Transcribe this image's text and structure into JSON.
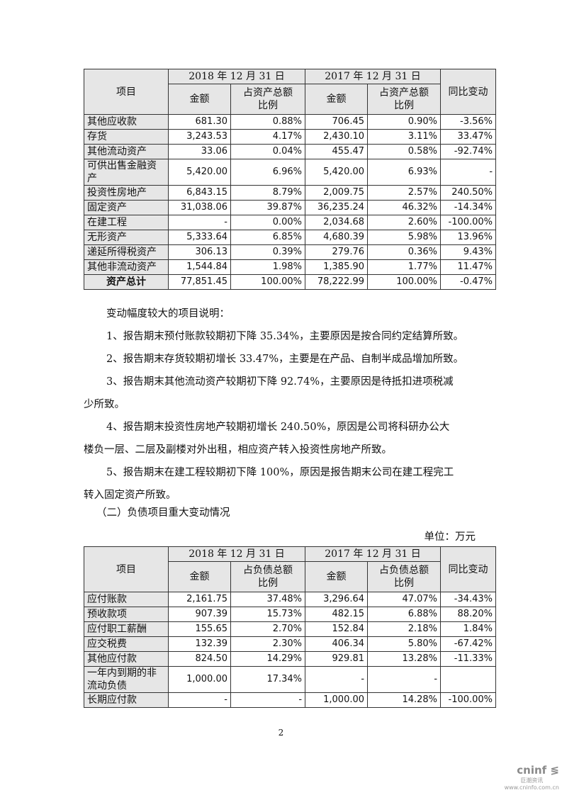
{
  "asset_table": {
    "header": {
      "item": "项目",
      "date1": "2018 年 12 月 31 日",
      "date2": "2017 年 12 月 31 日",
      "amount": "金额",
      "ratio": "占资产总额比例",
      "change": "同比变动"
    },
    "rows": [
      [
        "其他应收款",
        "681.30",
        "0.88%",
        "706.45",
        "0.90%",
        "-3.56%"
      ],
      [
        "存货",
        "3,243.53",
        "4.17%",
        "2,430.10",
        "3.11%",
        "33.47%"
      ],
      [
        "其他流动资产",
        "33.06",
        "0.04%",
        "455.47",
        "0.58%",
        "-92.74%"
      ],
      [
        "可供出售金融资产",
        "5,420.00",
        "6.96%",
        "5,420.00",
        "6.93%",
        "-"
      ],
      [
        "投资性房地产",
        "6,843.15",
        "8.79%",
        "2,009.75",
        "2.57%",
        "240.50%"
      ],
      [
        "固定资产",
        "31,038.06",
        "39.87%",
        "36,235.24",
        "46.32%",
        "-14.34%"
      ],
      [
        "在建工程",
        "-",
        "0.00%",
        "2,034.68",
        "2.60%",
        "-100.00%"
      ],
      [
        "无形资产",
        "5,333.64",
        "6.85%",
        "4,680.39",
        "5.98%",
        "13.96%"
      ],
      [
        "递延所得税资产",
        "306.13",
        "0.39%",
        "279.76",
        "0.36%",
        "9.43%"
      ],
      [
        "其他非流动资产",
        "1,544.84",
        "1.98%",
        "1,385.90",
        "1.77%",
        "11.47%"
      ]
    ],
    "total": [
      "资产总计",
      "77,851.45",
      "100.00%",
      "78,222.99",
      "100.00%",
      "-0.47%"
    ]
  },
  "notes": {
    "heading": "变动幅度较大的项目说明：",
    "items": [
      "1、报告期末预付账款较期初下降 35.34%，主要原因是按合同约定结算所致。",
      "2、报告期末存货较期初增长 33.47%，主要是在产品、自制半成品增加所致。",
      "3、报告期末其他流动资产较期初下降 92.74%，主要原因是待抵扣进项税减",
      "少所致。",
      "4、报告期末投资性房地产较期初增长  240.50%，原因是公司将科研办公大",
      "楼负一层、二层及副楼对外出租，相应资产转入投资性房地产所致。",
      "5、报告期末在建工程较期初下降 100%，原因是报告期末公司在建工程完工",
      "转入固定资产所致。"
    ]
  },
  "section2": {
    "title": "（二）负债项目重大变动情况",
    "unit": "单位：万元"
  },
  "liability_table": {
    "header": {
      "item": "项目",
      "date1": "2018 年 12 月 31 日",
      "date2": "2017 年 12 月 31 日",
      "amount": "金额",
      "ratio": "占负债总额比例",
      "change": "同比变动"
    },
    "rows": [
      [
        "应付账款",
        "2,161.75",
        "37.48%",
        "3,296.64",
        "47.07%",
        "-34.43%"
      ],
      [
        "预收款项",
        "907.39",
        "15.73%",
        "482.15",
        "6.88%",
        "88.20%"
      ],
      [
        "应付职工薪酬",
        "155.65",
        "2.70%",
        "152.84",
        "2.18%",
        "1.84%"
      ],
      [
        "应交税费",
        "132.39",
        "2.30%",
        "406.34",
        "5.80%",
        "-67.42%"
      ],
      [
        "其他应付款",
        "824.50",
        "14.29%",
        "929.81",
        "13.28%",
        "-11.33%"
      ],
      [
        "一年内到期的非流动负债",
        "1,000.00",
        "17.34%",
        "-",
        "-",
        ""
      ],
      [
        "长期应付款",
        "-",
        "-",
        "1,000.00",
        "14.28%",
        "-100.00%"
      ]
    ]
  },
  "page_number": "2",
  "watermark": {
    "brand": "cninf",
    "cn": "巨潮资讯",
    "url": "www.cninfo.com.cn"
  }
}
